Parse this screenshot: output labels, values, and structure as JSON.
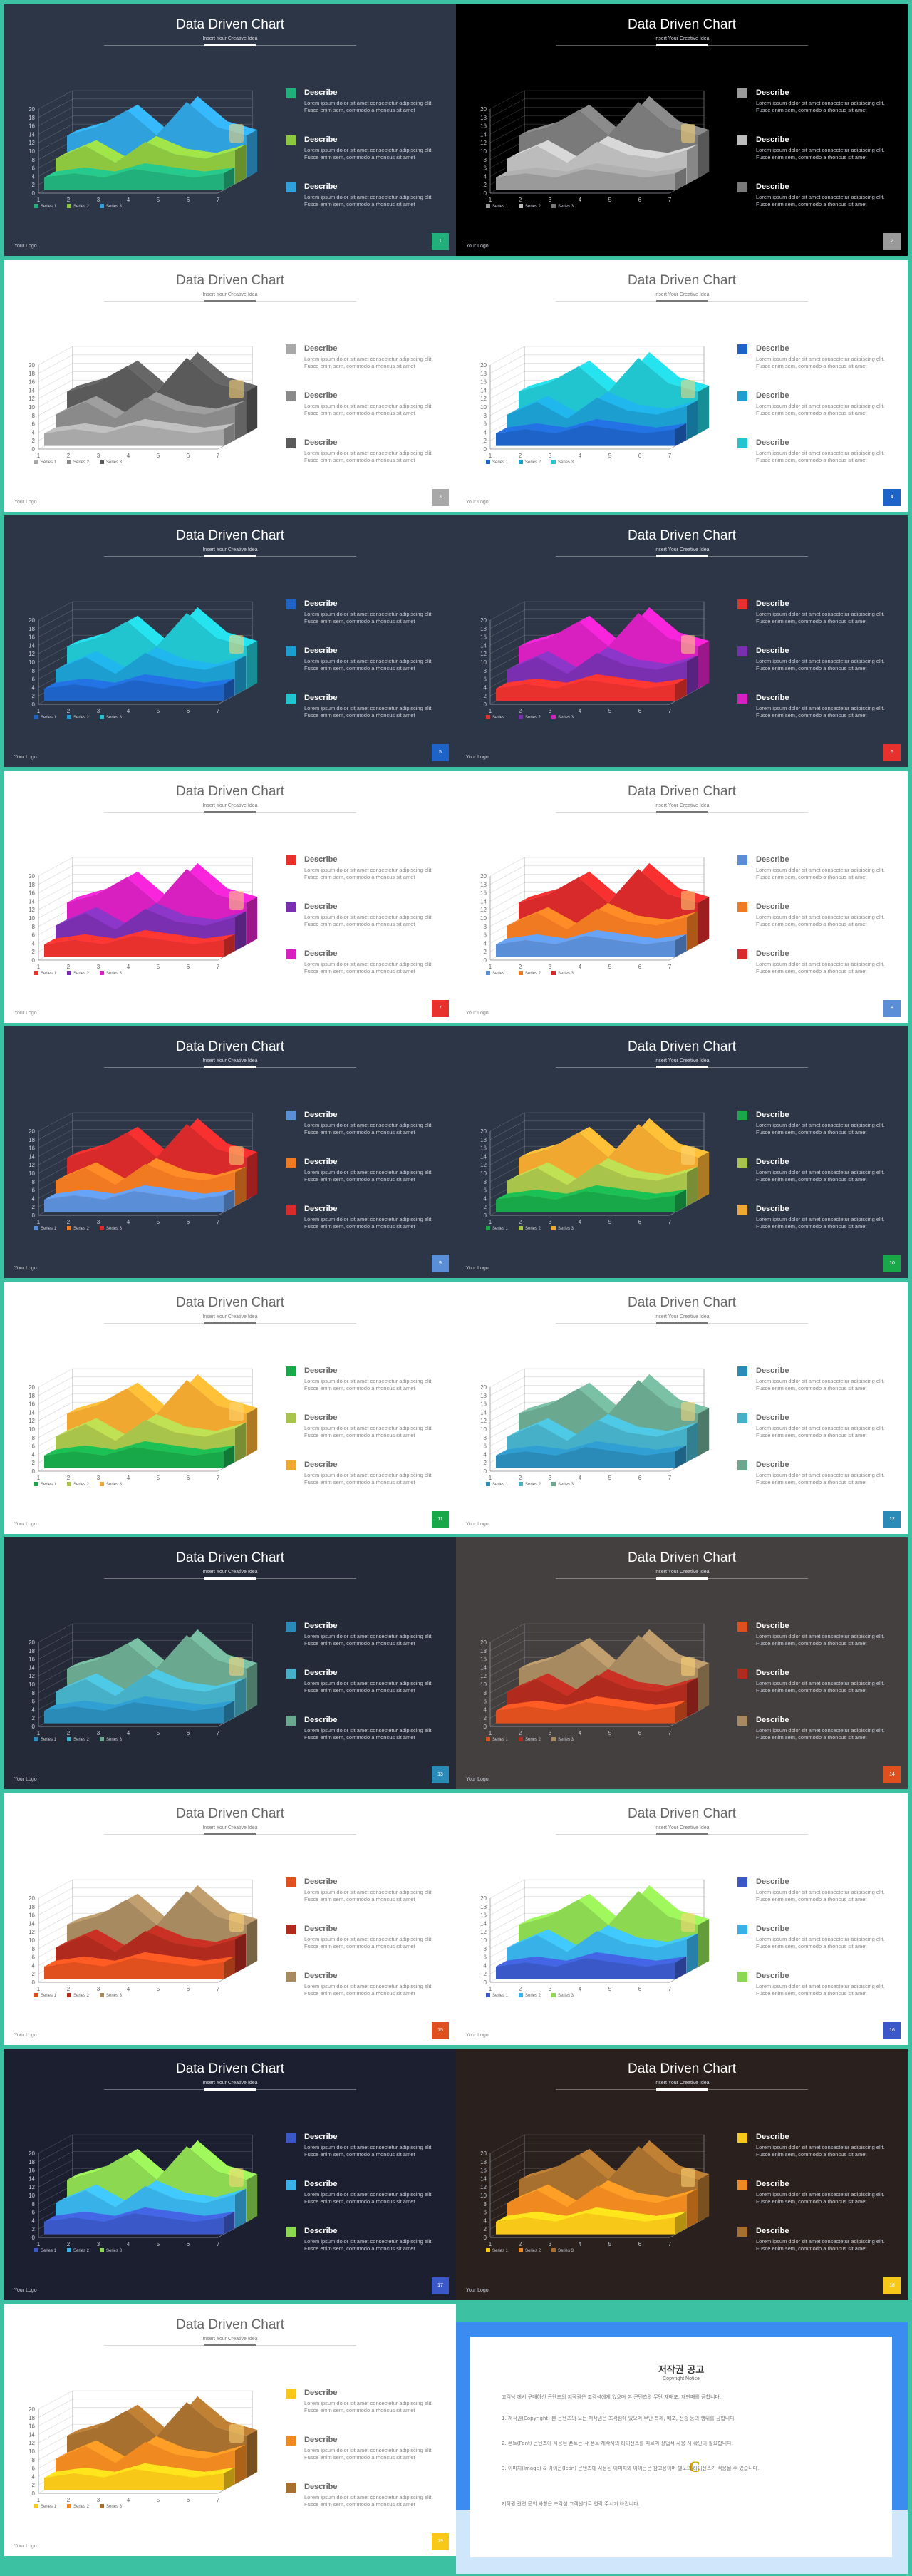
{
  "slide_text": {
    "title": "Data Driven Chart",
    "subtitle": "Insert Your Creative Idea",
    "logo": "Your Logo",
    "describe_label": "Describe",
    "describe_text": "Lorem ipsum dolor sit amet consectetur adipiscing elit. Fusce enim sem, commodo a rhoncus sit amet"
  },
  "chart_data": {
    "type": "area",
    "variant": "3d-area",
    "categories": [
      "1",
      "2",
      "3",
      "4",
      "5",
      "6",
      "7"
    ],
    "y_ticks": [
      "0",
      "2",
      "4",
      "6",
      "8",
      "10",
      "12",
      "14",
      "16",
      "18",
      "20"
    ],
    "ylim": [
      0,
      20
    ],
    "grid": true,
    "legend_position": "bottom",
    "series": [
      {
        "name": "Series 1",
        "values": [
          3,
          4,
          3,
          5,
          4,
          3,
          4
        ]
      },
      {
        "name": "Series 2",
        "values": [
          6,
          9,
          5,
          10,
          7,
          6,
          8
        ]
      },
      {
        "name": "Series 3",
        "values": [
          10,
          12,
          16,
          10,
          18,
          12,
          10
        ]
      }
    ]
  },
  "slides": [
    {
      "page": "1",
      "bg": "#2d3646",
      "dark": true,
      "colors": [
        "#21b07b",
        "#8dc73f",
        "#2fa1dc"
      ],
      "badge": "#21b07b"
    },
    {
      "page": "2",
      "bg": "#000000",
      "dark": true,
      "colors": [
        "#9a9a9a",
        "#bcbcbc",
        "#7a7a7a"
      ],
      "badge": "#9a9a9a"
    },
    {
      "page": "3",
      "bg": "#ffffff",
      "dark": false,
      "colors": [
        "#a8a8a8",
        "#8a8a8a",
        "#5a5a5a"
      ],
      "badge": "#a8a8a8"
    },
    {
      "page": "4",
      "bg": "#ffffff",
      "dark": false,
      "colors": [
        "#1e64c8",
        "#1c9fd0",
        "#20c5d0"
      ],
      "badge": "#1e64c8"
    },
    {
      "page": "5",
      "bg": "#2d3646",
      "dark": true,
      "colors": [
        "#1e64c8",
        "#1c9fd0",
        "#20c5d0"
      ],
      "badge": "#1e64c8"
    },
    {
      "page": "6",
      "bg": "#2d3646",
      "dark": true,
      "colors": [
        "#e8302c",
        "#7a2fb0",
        "#d820c0"
      ],
      "badge": "#e8302c"
    },
    {
      "page": "7",
      "bg": "#ffffff",
      "dark": false,
      "colors": [
        "#e8302c",
        "#7a2fb0",
        "#d820c0"
      ],
      "badge": "#e8302c"
    },
    {
      "page": "8",
      "bg": "#ffffff",
      "dark": false,
      "colors": [
        "#5a8fd8",
        "#f07a22",
        "#d82a2a"
      ],
      "badge": "#5a8fd8"
    },
    {
      "page": "9",
      "bg": "#2d3646",
      "dark": true,
      "colors": [
        "#5a8fd8",
        "#f07a22",
        "#d82a2a"
      ],
      "badge": "#5a8fd8"
    },
    {
      "page": "10",
      "bg": "#2d3646",
      "dark": true,
      "colors": [
        "#18a84a",
        "#a8c44a",
        "#f0a830"
      ],
      "badge": "#18a84a"
    },
    {
      "page": "11",
      "bg": "#ffffff",
      "dark": false,
      "colors": [
        "#18a84a",
        "#a8c44a",
        "#f0a830"
      ],
      "badge": "#18a84a"
    },
    {
      "page": "12",
      "bg": "#ffffff",
      "dark": false,
      "colors": [
        "#2a8ab8",
        "#45b0c8",
        "#6aa890"
      ],
      "badge": "#2a8ab8"
    },
    {
      "page": "13",
      "bg": "#252a38",
      "dark": true,
      "colors": [
        "#2a8ab8",
        "#45b0c8",
        "#6aa890"
      ],
      "badge": "#2a8ab8"
    },
    {
      "page": "14",
      "bg": "#454040",
      "dark": true,
      "colors": [
        "#e0501e",
        "#b02a1e",
        "#a88a60"
      ],
      "badge": "#e0501e"
    },
    {
      "page": "15",
      "bg": "#ffffff",
      "dark": false,
      "colors": [
        "#e0501e",
        "#b02a1e",
        "#a88a60"
      ],
      "badge": "#e0501e"
    },
    {
      "page": "16",
      "bg": "#ffffff",
      "dark": false,
      "colors": [
        "#3a58c8",
        "#38b0e8",
        "#8cd850"
      ],
      "badge": "#3a58c8"
    },
    {
      "page": "17",
      "bg": "#1c1f30",
      "dark": true,
      "colors": [
        "#3a58c8",
        "#38b0e8",
        "#8cd850"
      ],
      "badge": "#3a58c8"
    },
    {
      "page": "18",
      "bg": "#2a201e",
      "dark": true,
      "colors": [
        "#f8c818",
        "#f08a20",
        "#a8702e"
      ],
      "badge": "#f8c818"
    },
    {
      "page": "19",
      "bg": "#ffffff",
      "dark": false,
      "colors": [
        "#f8c818",
        "#f08a20",
        "#a8702e"
      ],
      "badge": "#f8c818"
    }
  ],
  "copyright": {
    "title": "저작권 공고",
    "subtitle": "Copyright Notice",
    "intro": "고객님 께서 구매하신 콘텐츠의 저작권은 조각섬에게 있으며 본 콘텐츠의 무단 재배포, 재판매를 금합니다.",
    "p1": "1. 저작권(Copyright) 본 콘텐츠의 모든 저작권은 조각섬에 있으며 무단 복제, 배포, 전송 등의 행위를 금합니다.",
    "p2": "2. 폰트(Font) 콘텐츠에 사용된 폰트는 각 폰트 제작사의 라이선스를 따르며 상업적 사용 시 확인이 필요합니다.",
    "p3": "3. 이미지(Image) & 아이콘(Icon) 콘텐츠에 사용된 이미지와 아이콘은 참고용이며 별도의 라이선스가 적용될 수 있습니다.",
    "outro": "저작권 관련 문의 사항은 조각섬 고객센터로 연락 주시기 바랍니다."
  }
}
